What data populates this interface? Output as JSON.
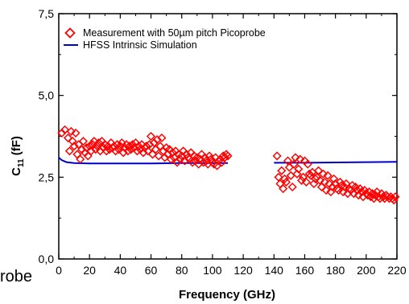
{
  "chart_data": {
    "type": "scatter",
    "xlabel": "Frequency (GHz)",
    "ylabel": {
      "base": "C",
      "sub": "11",
      "unit": " (fF)"
    },
    "xlim": [
      0,
      220
    ],
    "ylim": [
      0,
      7.5
    ],
    "x_ticks": [
      "0",
      "20",
      "40",
      "60",
      "80",
      "100",
      "120",
      "140",
      "160",
      "180",
      "200",
      "220"
    ],
    "y_ticks": [
      "0,0",
      "2,5",
      "5,0",
      "7,5"
    ],
    "legend_position": "top-left",
    "series": [
      {
        "name": "Measurement with 50µm pitch Picoprobe",
        "kind": "scatter",
        "marker": "diamond-open",
        "color": "#ff0000",
        "points": [
          [
            2,
            3.85
          ],
          [
            4,
            3.95
          ],
          [
            6,
            3.7
          ],
          [
            7,
            3.3
          ],
          [
            8,
            3.9
          ],
          [
            9,
            3.6
          ],
          [
            10,
            3.45
          ],
          [
            11,
            3.85
          ],
          [
            12,
            3.2
          ],
          [
            13,
            3.5
          ],
          [
            14,
            3.05
          ],
          [
            15,
            3.35
          ],
          [
            16,
            3.6
          ],
          [
            17,
            3.25
          ],
          [
            18,
            3.4
          ],
          [
            19,
            3.15
          ],
          [
            20,
            3.45
          ],
          [
            21,
            3.3
          ],
          [
            22,
            3.5
          ],
          [
            23,
            3.6
          ],
          [
            24,
            3.35
          ],
          [
            25,
            3.45
          ],
          [
            26,
            3.55
          ],
          [
            27,
            3.3
          ],
          [
            28,
            3.6
          ],
          [
            29,
            3.4
          ],
          [
            30,
            3.5
          ],
          [
            31,
            3.3
          ],
          [
            32,
            3.45
          ],
          [
            33,
            3.35
          ],
          [
            34,
            3.55
          ],
          [
            35,
            3.4
          ],
          [
            36,
            3.45
          ],
          [
            37,
            3.3
          ],
          [
            38,
            3.5
          ],
          [
            39,
            3.35
          ],
          [
            40,
            3.45
          ],
          [
            41,
            3.55
          ],
          [
            42,
            3.25
          ],
          [
            43,
            3.4
          ],
          [
            44,
            3.5
          ],
          [
            45,
            3.3
          ],
          [
            46,
            3.45
          ],
          [
            47,
            3.35
          ],
          [
            48,
            3.5
          ],
          [
            49,
            3.4
          ],
          [
            50,
            3.55
          ],
          [
            51,
            3.3
          ],
          [
            52,
            3.45
          ],
          [
            53,
            3.35
          ],
          [
            54,
            3.5
          ],
          [
            55,
            3.25
          ],
          [
            56,
            3.4
          ],
          [
            57,
            3.45
          ],
          [
            58,
            3.3
          ],
          [
            59,
            3.5
          ],
          [
            60,
            3.75
          ],
          [
            61,
            3.2
          ],
          [
            62,
            3.55
          ],
          [
            63,
            3.35
          ],
          [
            64,
            3.65
          ],
          [
            65,
            3.15
          ],
          [
            66,
            3.45
          ],
          [
            67,
            3.7
          ],
          [
            68,
            3.3
          ],
          [
            69,
            3.1
          ],
          [
            70,
            3.4
          ],
          [
            71,
            3.2
          ],
          [
            72,
            3.35
          ],
          [
            73,
            3.05
          ],
          [
            74,
            3.25
          ],
          [
            75,
            3.1
          ],
          [
            76,
            3.3
          ],
          [
            77,
            2.95
          ],
          [
            78,
            3.2
          ],
          [
            79,
            3.05
          ],
          [
            80,
            3.15
          ],
          [
            81,
            3.3
          ],
          [
            82,
            3.0
          ],
          [
            83,
            3.2
          ],
          [
            84,
            3.1
          ],
          [
            85,
            3.05
          ],
          [
            86,
            3.25
          ],
          [
            87,
            2.95
          ],
          [
            88,
            3.15
          ],
          [
            89,
            3.0
          ],
          [
            90,
            3.1
          ],
          [
            91,
            2.9
          ],
          [
            92,
            3.05
          ],
          [
            93,
            3.2
          ],
          [
            94,
            2.95
          ],
          [
            95,
            3.1
          ],
          [
            96,
            3.0
          ],
          [
            97,
            2.9
          ],
          [
            98,
            3.15
          ],
          [
            99,
            3.05
          ],
          [
            100,
            2.95
          ],
          [
            101,
            2.9
          ],
          [
            102,
            3.1
          ],
          [
            103,
            2.85
          ],
          [
            104,
            3.0
          ],
          [
            105,
            3.05
          ],
          [
            106,
            2.95
          ],
          [
            107,
            3.15
          ],
          [
            108,
            3.1
          ],
          [
            109,
            3.2
          ],
          [
            110,
            3.15
          ],
          [
            142,
            3.15
          ],
          [
            143,
            2.5
          ],
          [
            144,
            2.3
          ],
          [
            145,
            2.7
          ],
          [
            146,
            2.15
          ],
          [
            147,
            2.45
          ],
          [
            148,
            2.35
          ],
          [
            149,
            3.0
          ],
          [
            150,
            2.8
          ],
          [
            151,
            2.55
          ],
          [
            152,
            2.2
          ],
          [
            153,
            2.9
          ],
          [
            154,
            3.1
          ],
          [
            155,
            2.6
          ],
          [
            156,
            2.75
          ],
          [
            157,
            3.05
          ],
          [
            158,
            2.4
          ],
          [
            159,
            2.5
          ],
          [
            160,
            3.0
          ],
          [
            161,
            2.35
          ],
          [
            162,
            2.9
          ],
          [
            163,
            2.6
          ],
          [
            164,
            2.55
          ],
          [
            165,
            2.65
          ],
          [
            166,
            2.3
          ],
          [
            167,
            2.45
          ],
          [
            168,
            2.5
          ],
          [
            169,
            2.7
          ],
          [
            170,
            2.4
          ],
          [
            171,
            2.2
          ],
          [
            172,
            2.6
          ],
          [
            173,
            2.35
          ],
          [
            174,
            2.1
          ],
          [
            175,
            2.55
          ],
          [
            176,
            2.3
          ],
          [
            177,
            2.05
          ],
          [
            178,
            2.2
          ],
          [
            179,
            2.45
          ],
          [
            180,
            2.3
          ],
          [
            181,
            2.15
          ],
          [
            182,
            2.1
          ],
          [
            183,
            2.35
          ],
          [
            184,
            2.25
          ],
          [
            185,
            2.05
          ],
          [
            186,
            2.2
          ],
          [
            187,
            2.3
          ],
          [
            188,
            2.0
          ],
          [
            189,
            2.15
          ],
          [
            190,
            2.1
          ],
          [
            191,
            2.25
          ],
          [
            192,
            2.0
          ],
          [
            193,
            2.2
          ],
          [
            194,
            2.1
          ],
          [
            195,
            1.95
          ],
          [
            196,
            2.15
          ],
          [
            197,
            2.05
          ],
          [
            198,
            1.9
          ],
          [
            199,
            2.1
          ],
          [
            200,
            2.0
          ],
          [
            201,
            1.95
          ],
          [
            202,
            2.05
          ],
          [
            203,
            1.9
          ],
          [
            204,
            2.0
          ],
          [
            205,
            1.85
          ],
          [
            206,
            1.95
          ],
          [
            207,
            2.05
          ],
          [
            208,
            1.9
          ],
          [
            209,
            1.85
          ],
          [
            210,
            2.0
          ],
          [
            211,
            1.9
          ],
          [
            212,
            1.85
          ],
          [
            213,
            1.95
          ],
          [
            214,
            1.9
          ],
          [
            215,
            1.85
          ],
          [
            216,
            1.9
          ],
          [
            217,
            1.85
          ],
          [
            218,
            1.8
          ],
          [
            219,
            1.9
          ]
        ]
      },
      {
        "name": "HFSS Intrinsic Simulation",
        "kind": "line",
        "color": "#0000cc",
        "points": [
          [
            0,
            3.1
          ],
          [
            2,
            3.02
          ],
          [
            5,
            2.96
          ],
          [
            10,
            2.93
          ],
          [
            20,
            2.92
          ],
          [
            40,
            2.92
          ],
          [
            60,
            2.92
          ],
          [
            80,
            2.93
          ],
          [
            100,
            2.93
          ],
          [
            110,
            2.93
          ],
          [
            140,
            2.94
          ],
          [
            160,
            2.94
          ],
          [
            180,
            2.95
          ],
          [
            200,
            2.96
          ],
          [
            220,
            2.97
          ]
        ],
        "gaps_after_x": [
          110
        ]
      }
    ]
  },
  "overlay": {
    "cropped_text": "robe"
  }
}
